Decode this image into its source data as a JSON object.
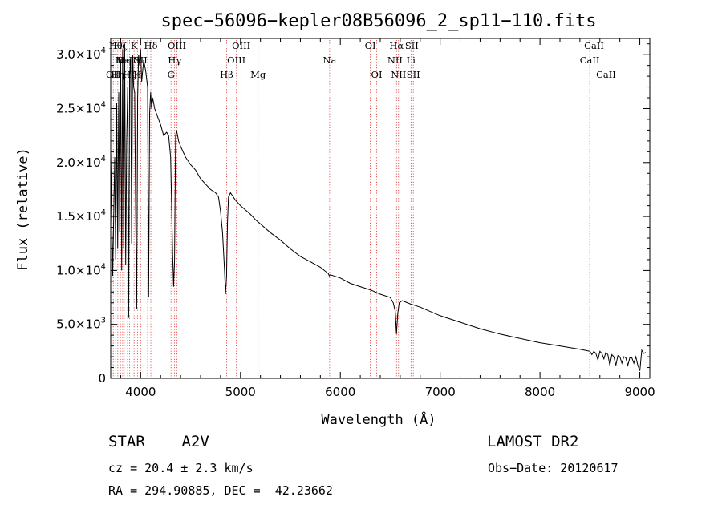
{
  "chart_data": {
    "type": "line",
    "title": "spec−56096−kepler08B56096_2_sp11−110.fits",
    "xlabel": "Wavelength (Å)",
    "ylabel": "Flux (relative)",
    "xlim": [
      3700,
      9100
    ],
    "ylim": [
      0,
      31500
    ],
    "xticks": [
      4000,
      5000,
      6000,
      7000,
      8000,
      9000
    ],
    "xtick_labels": [
      "4000",
      "5000",
      "6000",
      "7000",
      "8000",
      "9000"
    ],
    "yticks": [
      0,
      5000,
      10000,
      15000,
      20000,
      25000,
      30000
    ],
    "ytick_labels": [
      {
        "mant": "0",
        "exp": ""
      },
      {
        "mant": "5.0×10",
        "exp": "3"
      },
      {
        "mant": "1.0×10",
        "exp": "4"
      },
      {
        "mant": "1.5×10",
        "exp": "4"
      },
      {
        "mant": "2.0×10",
        "exp": "4"
      },
      {
        "mant": "2.5×10",
        "exp": "4"
      },
      {
        "mant": "3.0×10",
        "exp": "4"
      }
    ],
    "grid": false,
    "series": [
      {
        "color": "#000000",
        "x": [
          3700,
          3720,
          3740,
          3750,
          3760,
          3770,
          3780,
          3790,
          3800,
          3810,
          3820,
          3830,
          3840,
          3850,
          3860,
          3870,
          3880,
          3890,
          3900,
          3910,
          3920,
          3930,
          3940,
          3950,
          3960,
          3970,
          3980,
          3990,
          4000,
          4010,
          4030,
          4050,
          4070,
          4080,
          4090,
          4100,
          4110,
          4120,
          4140,
          4160,
          4180,
          4200,
          4230,
          4260,
          4280,
          4300,
          4320,
          4330,
          4340,
          4350,
          4360,
          4380,
          4400,
          4450,
          4500,
          4550,
          4600,
          4650,
          4700,
          4750,
          4780,
          4800,
          4820,
          4840,
          4850,
          4860,
          4870,
          4880,
          4900,
          4950,
          5000,
          5050,
          5100,
          5150,
          5200,
          5300,
          5400,
          5500,
          5600,
          5700,
          5800,
          5880,
          5890,
          5900,
          6000,
          6100,
          6200,
          6300,
          6400,
          6500,
          6530,
          6550,
          6562,
          6575,
          6590,
          6620,
          6700,
          6800,
          7000,
          7200,
          7400,
          7600,
          7800,
          8000,
          8200,
          8400,
          8450,
          8500,
          8520,
          8540,
          8560,
          8580,
          8600,
          8620,
          8640,
          8660,
          8680,
          8700,
          8720,
          8740,
          8760,
          8780,
          8800,
          8820,
          8840,
          8860,
          8880,
          8900,
          8920,
          8940,
          8960,
          8980,
          9000,
          9020,
          9040,
          9060
        ],
        "y": [
          21000,
          9500,
          20500,
          11000,
          25500,
          12000,
          26500,
          13500,
          29500,
          10000,
          30500,
          12000,
          31000,
          10500,
          22000,
          27000,
          5600,
          28000,
          29500,
          12500,
          30000,
          27000,
          26500,
          15500,
          6400,
          26000,
          30000,
          29000,
          30500,
          27500,
          29500,
          28500,
          27000,
          7500,
          24500,
          26500,
          25000,
          26000,
          25000,
          24500,
          24000,
          23500,
          22500,
          22800,
          22500,
          20500,
          11500,
          8500,
          11000,
          22500,
          23000,
          22000,
          21500,
          20500,
          19800,
          19300,
          18500,
          18000,
          17500,
          17200,
          16800,
          15500,
          13500,
          10000,
          7800,
          9500,
          14500,
          16800,
          17200,
          16500,
          16000,
          15600,
          15200,
          14700,
          14300,
          13500,
          12800,
          12000,
          11300,
          10800,
          10300,
          9700,
          9500,
          9600,
          9300,
          8800,
          8500,
          8200,
          7800,
          7500,
          7000,
          6200,
          4100,
          6000,
          7000,
          7200,
          6900,
          6600,
          5800,
          5200,
          4600,
          4100,
          3700,
          3300,
          3000,
          2700,
          2600,
          2500,
          2200,
          2500,
          2300,
          1700,
          2500,
          2300,
          1800,
          2400,
          2200,
          1200,
          2200,
          2000,
          1200,
          2100,
          2000,
          1400,
          2000,
          1900,
          1200,
          1900,
          1900,
          1400,
          2000,
          1200,
          700,
          2600,
          2300,
          2400
        ]
      }
    ],
    "lines": [
      {
        "wl": 3726,
        "label": "OII",
        "row": 3
      },
      {
        "wl": 3750,
        "label": "Hθ",
        "row": 1
      },
      {
        "wl": 3771,
        "label": "Hη",
        "row": 3
      },
      {
        "wl": 3798,
        "label": "Hζ",
        "row": 1
      },
      {
        "wl": 3820,
        "label": "He",
        "row": 2
      },
      {
        "wl": 3835,
        "label": "Hη",
        "row": 2
      },
      {
        "wl": 3869,
        "label": "NeIII",
        "row": 2
      },
      {
        "wl": 3889,
        "label": "Hζ",
        "row": 3
      },
      {
        "wl": 3934,
        "label": "K",
        "row": 1
      },
      {
        "wl": 3968,
        "label": "H",
        "row": 3
      },
      {
        "wl": 4000,
        "label": "SII",
        "row": 2
      },
      {
        "wl": 4070,
        "label": "",
        "row": 0
      },
      {
        "wl": 4102,
        "label": "Hδ",
        "row": 1
      },
      {
        "wl": 4304,
        "label": "G",
        "row": 3
      },
      {
        "wl": 4340,
        "label": "Hγ",
        "row": 2
      },
      {
        "wl": 4363,
        "label": "OIII",
        "row": 1
      },
      {
        "wl": 4861,
        "label": "Hβ",
        "row": 3
      },
      {
        "wl": 4959,
        "label": "OIII",
        "row": 2
      },
      {
        "wl": 5007,
        "label": "OIII",
        "row": 1
      },
      {
        "wl": 5176,
        "label": "Mg",
        "row": 3
      },
      {
        "wl": 5893,
        "label": "Na",
        "row": 2
      },
      {
        "wl": 6300,
        "label": "OI",
        "row": 1
      },
      {
        "wl": 6364,
        "label": "OI",
        "row": 3
      },
      {
        "wl": 6548,
        "label": "NII",
        "row": 2
      },
      {
        "wl": 6563,
        "label": "Hα",
        "row": 1
      },
      {
        "wl": 6583,
        "label": "NII",
        "row": 3
      },
      {
        "wl": 6716,
        "label": "SII",
        "row": 1
      },
      {
        "wl": 6708,
        "label": "Li",
        "row": 2
      },
      {
        "wl": 6731,
        "label": "SII",
        "row": 3
      },
      {
        "wl": 8498,
        "label": "CaII",
        "row": 2
      },
      {
        "wl": 8542,
        "label": "CaII",
        "row": 1
      },
      {
        "wl": 8662,
        "label": "CaII",
        "row": 3
      }
    ]
  },
  "info": {
    "star_type": "STAR    A2V",
    "survey": "LAMOST DR2",
    "redshift": "cz = 20.4 ± 2.3 km/s",
    "obs_date": "Obs−Date: 20120617",
    "coords": "RA = 294.90885, DEC =  42.23662"
  }
}
